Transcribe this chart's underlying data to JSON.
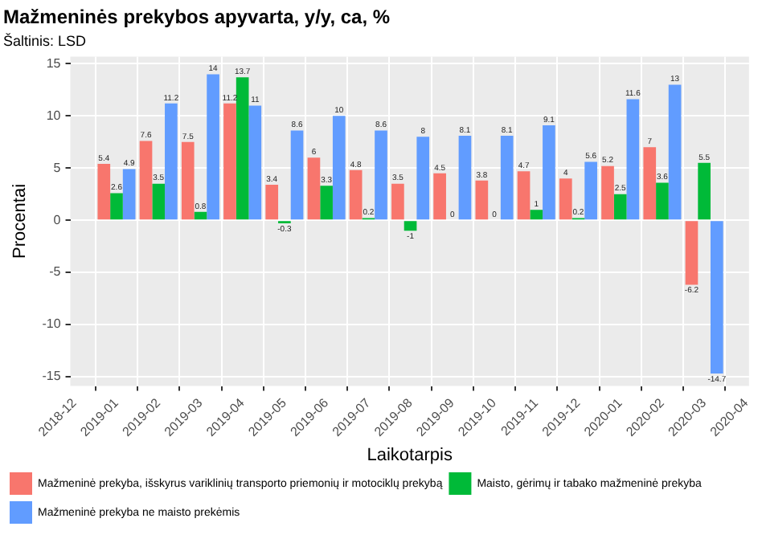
{
  "chart_data": {
    "type": "bar",
    "title": "Mažmeninės prekybos apyvarta, y/y, ca, %",
    "subtitle": "Šaltinis: LSD",
    "xlabel": "Laikotarpis",
    "ylabel": "Procentai",
    "x": [
      "2019-01",
      "2019-02",
      "2019-03",
      "2019-04",
      "2019-05",
      "2019-06",
      "2019-07",
      "2019-08",
      "2019-09",
      "2019-10",
      "2019-11",
      "2019-12",
      "2020-01",
      "2020-02",
      "2020-03"
    ],
    "series": [
      {
        "name": "Mažmeninė prekyba, išskyrus variklinių transporto priemonių ir motociklų prekybą",
        "color": "#f8766d",
        "values": [
          5.4,
          7.6,
          7.5,
          11.2,
          3.4,
          6,
          4.8,
          3.5,
          4.5,
          3.8,
          4.7,
          4,
          5.2,
          7,
          -6.2
        ]
      },
      {
        "name": "Maisto, gėrimų ir tabako mažmeninė prekyba",
        "color": "#00ba38",
        "values": [
          2.6,
          3.5,
          0.8,
          13.7,
          -0.3,
          3.3,
          0.2,
          -1,
          0,
          0,
          1,
          0.2,
          2.5,
          3.6,
          5.5
        ]
      },
      {
        "name": "Mažmeninė prekyba ne maisto prekėmis",
        "color": "#619cff",
        "values": [
          4.9,
          11.2,
          14,
          11,
          8.6,
          10,
          8.6,
          8,
          8.1,
          8.1,
          9.1,
          5.6,
          11.6,
          13,
          -14.7
        ]
      }
    ],
    "xlim": [
      "2018-11-28",
      "2020-04-03"
    ],
    "xticks": [
      "2018-12",
      "2019-01",
      "2019-02",
      "2019-03",
      "2019-04",
      "2019-05",
      "2019-06",
      "2019-07",
      "2019-08",
      "2019-09",
      "2019-10",
      "2019-11",
      "2019-12",
      "2020-01",
      "2020-02",
      "2020-03",
      "2020-04"
    ],
    "ylim": [
      -15.9,
      15.7
    ],
    "yticks": [
      -15,
      -10,
      -5,
      0,
      5,
      10,
      15
    ],
    "grid": true,
    "legend": "bottom",
    "data_labels": true
  }
}
